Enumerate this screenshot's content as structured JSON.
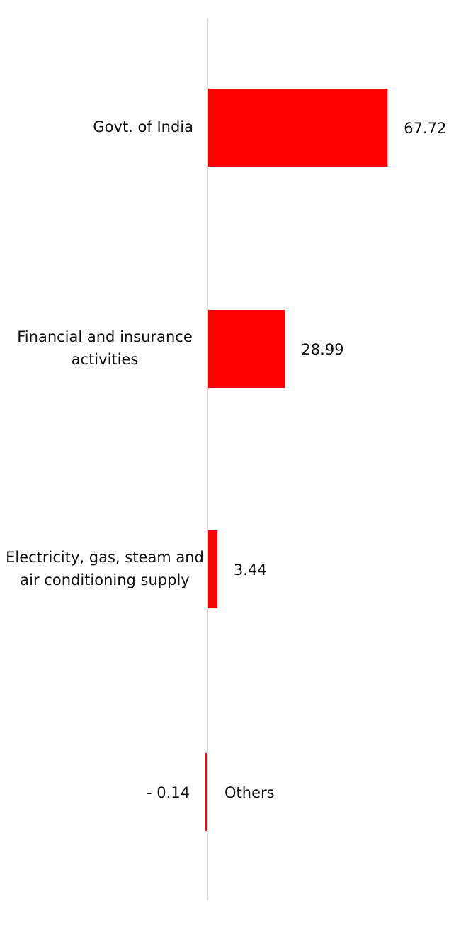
{
  "chart_data": {
    "type": "bar",
    "orientation": "horizontal",
    "title": "",
    "xlabel": "",
    "ylabel": "",
    "grid": false,
    "legend": "none",
    "bar_color": "#ff0000",
    "axis_color": "#d9d9d9",
    "xlim": [
      -0.5,
      78
    ],
    "categories": [
      "Govt. of India",
      "Financial and insurance activities",
      "Electricity, gas, steam and air conditioning supply",
      "Others"
    ],
    "category_lines": [
      [
        "Govt. of India"
      ],
      [
        "Financial and insurance",
        "activities"
      ],
      [
        "Electricity, gas, steam and",
        "air conditioning supply"
      ],
      [
        "Others"
      ]
    ],
    "values": [
      67.72,
      28.99,
      3.44,
      -0.14
    ],
    "value_labels": [
      "67.72",
      "28.99",
      "3.44",
      "-  0.14"
    ]
  }
}
